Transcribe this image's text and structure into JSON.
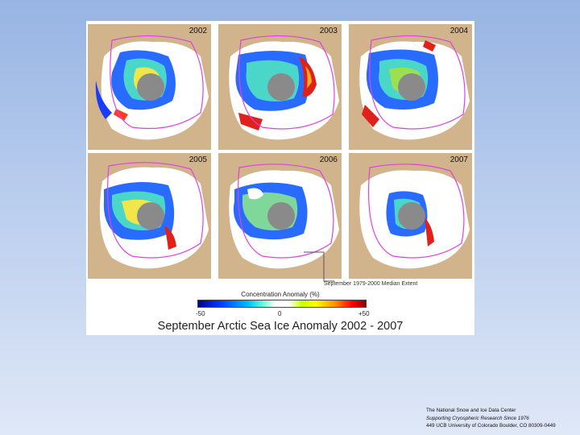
{
  "figure": {
    "title": "September Arctic Sea Ice Anomaly 2002 - 2007",
    "panels": [
      {
        "year": "2002"
      },
      {
        "year": "2003"
      },
      {
        "year": "2004"
      },
      {
        "year": "2005"
      },
      {
        "year": "2006"
      },
      {
        "year": "2007"
      }
    ],
    "median_label": "September 1979-2000 Median Extent",
    "legend": {
      "title": "Concentration Anomaly (%)",
      "min_label": "-50",
      "mid_label": "0",
      "max_label": "+50"
    }
  },
  "credit": {
    "line1": "The National Snow and Ice Data Center",
    "line2": "Supporting Cryospheric Research Since 1976",
    "line3": "449 UCB University of Colorado  Boulder, CO 80309-0449"
  },
  "colors": {
    "land": "#d2b48c",
    "ice": "#ffffff",
    "pole_hole": "#8a8a8a",
    "median_line": "#e040e0"
  }
}
